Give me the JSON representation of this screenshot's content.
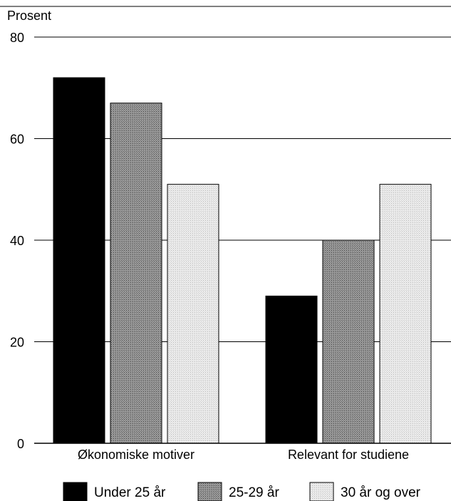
{
  "chart_data": {
    "type": "bar",
    "ylabel": "Prosent",
    "ylim": [
      0,
      80
    ],
    "yticks": [
      0,
      20,
      40,
      60,
      80
    ],
    "grid": true,
    "legend_position": "bottom",
    "categories": [
      "Økonomiske motiver",
      "Relevant for studiene"
    ],
    "series": [
      {
        "name": "Under 25 år",
        "values": [
          72,
          29
        ],
        "color": "#000000"
      },
      {
        "name": "25-29 år",
        "values": [
          67,
          40
        ],
        "color": "#8c8c8c"
      },
      {
        "name": "30 år og over",
        "values": [
          51,
          51
        ],
        "color": "#e2e2e2"
      }
    ]
  }
}
